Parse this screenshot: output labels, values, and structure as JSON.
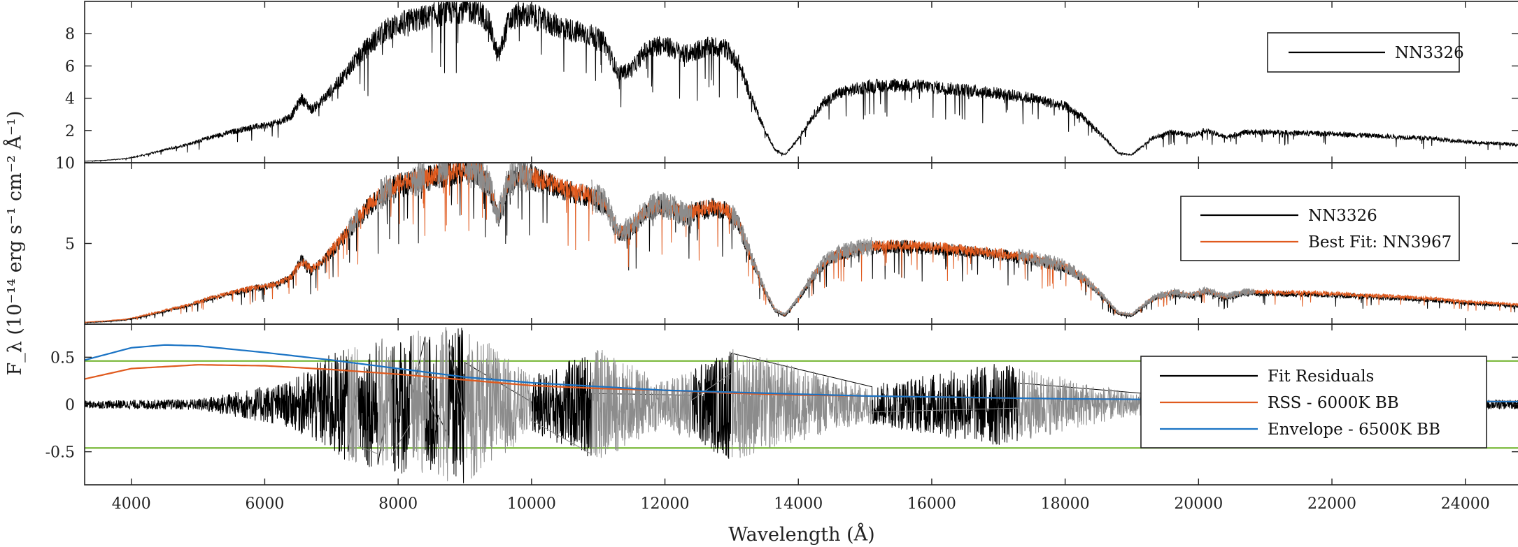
{
  "chart_data": {
    "type": "line",
    "xlabel": "Wavelength (Å)",
    "ylabel": "F_λ (10⁻¹⁴ erg s⁻¹ cm⁻² Å⁻¹)",
    "xlim": [
      3300,
      24800
    ],
    "x_ticks": [
      "4000",
      "6000",
      "8000",
      "10000",
      "12000",
      "14000",
      "16000",
      "18000",
      "20000",
      "22000",
      "24000"
    ],
    "x_tick_values": [
      4000,
      6000,
      8000,
      10000,
      12000,
      14000,
      16000,
      18000,
      20000,
      22000,
      24000
    ],
    "colors": {
      "observed": "#000000",
      "fit": "#e05a1e",
      "masked": "#8c8c8c",
      "envelope": "#1a73c4",
      "threshold": "#6ab023"
    },
    "panels": [
      {
        "id": "spectrum",
        "ylim": [
          0,
          10
        ],
        "y_ticks": [
          "2",
          "4",
          "6",
          "8"
        ],
        "y_tick_values": [
          2,
          4,
          6,
          8
        ],
        "legend": [
          "NN3326"
        ],
        "legend_position": "top-right",
        "series": [
          {
            "name": "NN3326",
            "color": "#000000",
            "x": [
              3300,
              3600,
              3900,
              4100,
              4300,
              4600,
              4900,
              5200,
              5500,
              5800,
              6000,
              6200,
              6400,
              6550,
              6700,
              6850,
              7000,
              7150,
              7300,
              7500,
              7700,
              7850,
              8000,
              8200,
              8400,
              8600,
              8800,
              9000,
              9200,
              9350,
              9500,
              9650,
              9800,
              10000,
              10300,
              10600,
              10900,
              11100,
              11300,
              11500,
              11700,
              11900,
              12100,
              12300,
              12500,
              12700,
              12900,
              13100,
              13300,
              13500,
              13650,
              13800,
              14000,
              14200,
              14400,
              14600,
              14800,
              15000,
              15300,
              15600,
              16000,
              16500,
              17000,
              17500,
              18000,
              18300,
              18600,
              18800,
              19000,
              19300,
              19600,
              19900,
              20100,
              20400,
              20700,
              21000,
              21500,
              22000,
              22500,
              23000,
              23500,
              24000,
              24500,
              24800
            ],
            "y": [
              0.1,
              0.15,
              0.25,
              0.4,
              0.6,
              0.9,
              1.2,
              1.6,
              1.9,
              2.2,
              2.3,
              2.5,
              2.9,
              4.0,
              3.3,
              3.8,
              4.5,
              5.2,
              6.0,
              7.0,
              7.8,
              8.3,
              8.6,
              8.8,
              9.0,
              9.2,
              9.4,
              9.5,
              9.4,
              8.8,
              6.5,
              8.7,
              9.2,
              9.1,
              8.6,
              8.2,
              7.9,
              7.4,
              5.5,
              5.8,
              6.9,
              7.3,
              7.1,
              6.7,
              7.0,
              7.2,
              7.1,
              6.2,
              4.0,
              2.0,
              0.8,
              0.5,
              1.5,
              2.8,
              3.8,
              4.3,
              4.5,
              4.7,
              4.8,
              4.8,
              4.7,
              4.5,
              4.3,
              4.0,
              3.5,
              2.7,
              1.5,
              0.6,
              0.5,
              1.5,
              1.9,
              1.7,
              2.0,
              1.6,
              1.9,
              1.9,
              1.85,
              1.8,
              1.7,
              1.6,
              1.5,
              1.3,
              1.2,
              1.1
            ]
          }
        ]
      },
      {
        "id": "fit",
        "ylim": [
          0,
          10
        ],
        "y_ticks": [
          "5",
          "10"
        ],
        "y_tick_values": [
          5,
          10
        ],
        "legend": [
          "NN3326",
          "Best Fit: NN3967"
        ],
        "legend_position": "top-right",
        "masked_regions": [
          [
            7250,
            7400
          ],
          [
            7700,
            7900
          ],
          [
            8200,
            8400
          ],
          [
            8600,
            8750
          ],
          [
            9000,
            10000
          ],
          [
            10900,
            12400
          ],
          [
            13000,
            15100
          ],
          [
            17300,
            20850
          ]
        ],
        "series": [
          {
            "name": "NN3326",
            "color": "#000000",
            "x": [
              3300,
              3600,
              3900,
              4100,
              4300,
              4600,
              4900,
              5200,
              5500,
              5800,
              6000,
              6200,
              6400,
              6550,
              6700,
              6850,
              7000,
              7150,
              7300,
              7500,
              7700,
              7850,
              8000,
              8200,
              8400,
              8600,
              8800,
              9000,
              9200,
              9350,
              9500,
              9650,
              9800,
              10000,
              10300,
              10600,
              10900,
              11100,
              11300,
              11500,
              11700,
              11900,
              12100,
              12300,
              12500,
              12700,
              12900,
              13100,
              13300,
              13500,
              13650,
              13800,
              14000,
              14200,
              14400,
              14600,
              14800,
              15000,
              15300,
              15600,
              16000,
              16500,
              17000,
              17500,
              18000,
              18300,
              18600,
              18800,
              19000,
              19300,
              19600,
              19900,
              20100,
              20400,
              20700,
              21000,
              21500,
              22000,
              22500,
              23000,
              23500,
              24000,
              24500,
              24800
            ],
            "y": [
              0.1,
              0.15,
              0.25,
              0.4,
              0.6,
              0.9,
              1.2,
              1.6,
              1.9,
              2.2,
              2.3,
              2.5,
              2.9,
              4.0,
              3.3,
              3.8,
              4.5,
              5.2,
              6.0,
              7.0,
              7.8,
              8.3,
              8.6,
              8.8,
              9.0,
              9.2,
              9.4,
              9.5,
              9.4,
              8.8,
              6.5,
              8.7,
              9.2,
              9.1,
              8.6,
              8.2,
              7.9,
              7.4,
              5.5,
              5.8,
              6.9,
              7.3,
              7.1,
              6.7,
              7.0,
              7.2,
              7.1,
              6.2,
              4.0,
              2.0,
              0.8,
              0.5,
              1.5,
              2.8,
              3.8,
              4.3,
              4.5,
              4.7,
              4.8,
              4.8,
              4.7,
              4.5,
              4.3,
              4.0,
              3.5,
              2.7,
              1.5,
              0.6,
              0.5,
              1.5,
              1.9,
              1.7,
              2.0,
              1.6,
              1.9,
              1.9,
              1.85,
              1.8,
              1.7,
              1.6,
              1.5,
              1.3,
              1.2,
              1.1
            ]
          },
          {
            "name": "Best Fit: NN3967",
            "color": "#e05a1e",
            "x": [
              3300,
              3600,
              3900,
              4100,
              4300,
              4600,
              4900,
              5200,
              5500,
              5800,
              6000,
              6200,
              6400,
              6550,
              6700,
              6850,
              7000,
              7150,
              7300,
              7500,
              7700,
              7850,
              8000,
              8200,
              8400,
              8600,
              8800,
              9000,
              9200,
              9350,
              9500,
              9650,
              9800,
              10000,
              10300,
              10600,
              10900,
              11100,
              11300,
              11500,
              11700,
              11900,
              12100,
              12300,
              12500,
              12700,
              12900,
              13100,
              13300,
              13500,
              13650,
              13800,
              14000,
              14200,
              14400,
              14600,
              14800,
              15000,
              15300,
              15600,
              16000,
              16500,
              17000,
              17500,
              18000,
              18300,
              18600,
              18800,
              19000,
              19300,
              19600,
              19900,
              20100,
              20400,
              20700,
              21000,
              21500,
              22000,
              22500,
              23000,
              23500,
              24000,
              24500,
              24800
            ],
            "y": [
              0.12,
              0.2,
              0.3,
              0.45,
              0.65,
              0.95,
              1.25,
              1.65,
              1.95,
              2.25,
              2.35,
              2.55,
              2.95,
              3.9,
              3.4,
              3.9,
              4.6,
              5.3,
              6.1,
              7.1,
              7.9,
              8.4,
              8.7,
              8.9,
              9.1,
              9.3,
              9.5,
              9.6,
              9.5,
              8.9,
              6.7,
              8.8,
              9.3,
              9.2,
              8.7,
              8.3,
              8.0,
              7.5,
              5.7,
              6.0,
              7.0,
              7.4,
              7.2,
              6.8,
              7.1,
              7.3,
              7.2,
              6.3,
              4.1,
              2.1,
              0.9,
              0.6,
              1.6,
              2.9,
              3.9,
              4.4,
              4.6,
              4.8,
              4.9,
              4.9,
              4.8,
              4.6,
              4.4,
              4.1,
              3.6,
              2.8,
              1.6,
              0.7,
              0.6,
              1.6,
              2.0,
              1.8,
              2.1,
              1.7,
              2.0,
              2.0,
              1.95,
              1.9,
              1.8,
              1.7,
              1.6,
              1.4,
              1.3,
              1.2
            ]
          }
        ]
      },
      {
        "id": "residuals",
        "ylim": [
          -0.85,
          0.85
        ],
        "y_ticks": [
          "0.5",
          "0",
          "-0.5"
        ],
        "y_tick_values": [
          0.5,
          0,
          -0.5
        ],
        "legend": [
          "Fit Residuals",
          "RSS - 6000K BB",
          "Envelope - 6500K BB"
        ],
        "legend_position": "right",
        "thresholds": [
          0.46,
          -0.46
        ],
        "series": [
          {
            "name": "Fit Residuals",
            "color": "#000000",
            "x": [
              3300,
              5000,
              6400,
              7000,
              8000,
              9000,
              10000,
              11000,
              12000,
              13000,
              15000,
              17000,
              19000,
              21000,
              23000,
              24800
            ],
            "y": [
              0.04,
              0.06,
              0.25,
              0.55,
              0.75,
              0.85,
              0.3,
              0.6,
              0.25,
              0.6,
              0.2,
              0.45,
              0.12,
              0.06,
              0.06,
              0.05
            ]
          },
          {
            "name": "RSS - 6000K BB",
            "color": "#e05a1e",
            "x": [
              3300,
              4000,
              5000,
              6000,
              7000,
              8000,
              9000,
              10000,
              11000,
              12000,
              13000,
              14000,
              15000,
              16000,
              18000,
              20000,
              22000,
              24800
            ],
            "y": [
              0.27,
              0.38,
              0.42,
              0.41,
              0.37,
              0.32,
              0.26,
              0.2,
              0.17,
              0.15,
              0.12,
              0.1,
              0.09,
              0.08,
              0.06,
              0.05,
              0.04,
              0.03
            ]
          },
          {
            "name": "Envelope - 6500K BB",
            "color": "#1a73c4",
            "x": [
              3300,
              4000,
              4500,
              5000,
              6000,
              7000,
              8000,
              9000,
              10000,
              11000,
              12000,
              13000,
              14000,
              15000,
              16000,
              18000,
              20000,
              22000,
              24800
            ],
            "y": [
              0.47,
              0.6,
              0.63,
              0.62,
              0.55,
              0.47,
              0.38,
              0.29,
              0.23,
              0.19,
              0.15,
              0.13,
              0.11,
              0.09,
              0.08,
              0.06,
              0.05,
              0.04,
              0.03
            ]
          }
        ]
      }
    ]
  }
}
